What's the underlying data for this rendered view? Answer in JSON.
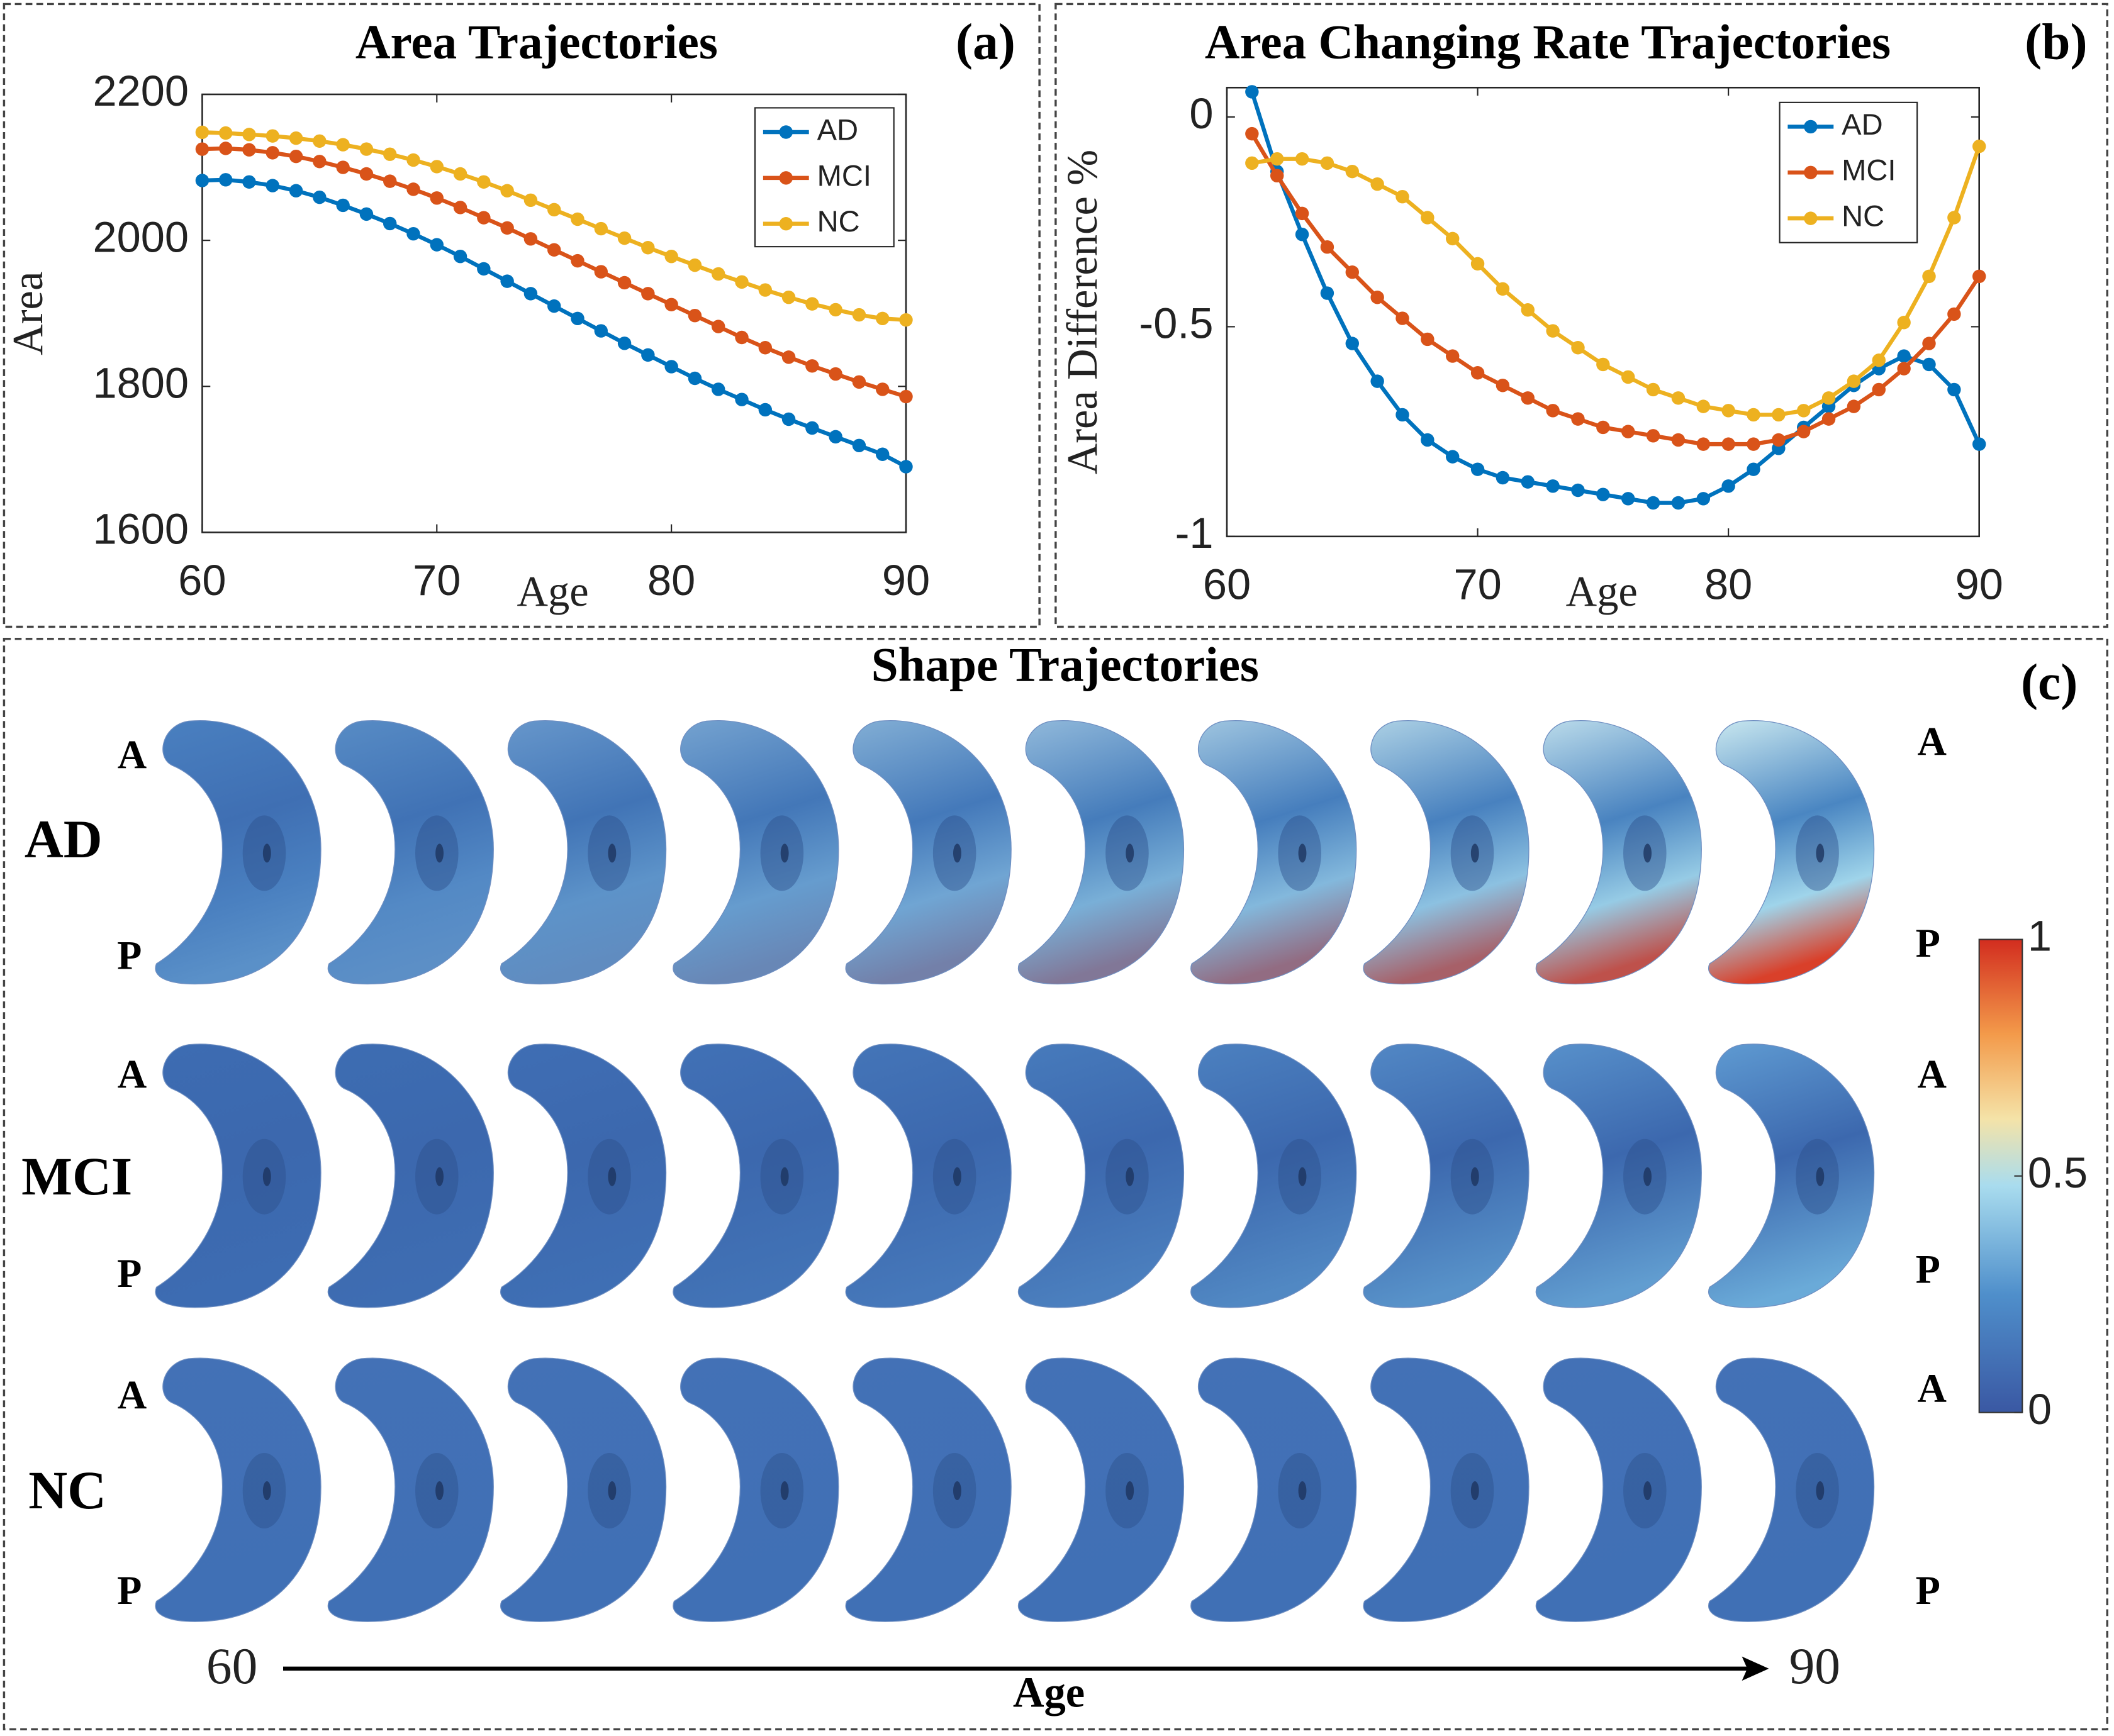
{
  "chart_data": [
    {
      "type": "line",
      "title": "Area Trajectories",
      "panel_label": "(a)",
      "x_label": "Age",
      "y_label": "Area",
      "x": [
        60,
        61,
        62,
        63,
        64,
        65,
        66,
        67,
        68,
        69,
        70,
        71,
        72,
        73,
        74,
        75,
        76,
        77,
        78,
        79,
        80,
        81,
        82,
        83,
        84,
        85,
        86,
        87,
        88,
        89,
        90
      ],
      "series": [
        {
          "name": "AD",
          "color": "#0072bd",
          "values": [
            2082,
            2083,
            2080,
            2075,
            2068,
            2059,
            2048,
            2036,
            2023,
            2009,
            1994,
            1978,
            1961,
            1944,
            1927,
            1910,
            1893,
            1876,
            1859,
            1843,
            1827,
            1811,
            1796,
            1782,
            1768,
            1755,
            1743,
            1731,
            1719,
            1707,
            1690
          ]
        },
        {
          "name": "MCI",
          "color": "#d95319",
          "values": [
            2125,
            2126,
            2124,
            2120,
            2115,
            2108,
            2100,
            2091,
            2081,
            2070,
            2058,
            2045,
            2031,
            2017,
            2002,
            1987,
            1972,
            1957,
            1942,
            1927,
            1912,
            1897,
            1882,
            1867,
            1853,
            1840,
            1828,
            1817,
            1806,
            1796,
            1786
          ]
        },
        {
          "name": "NC",
          "color": "#edb120",
          "values": [
            2148,
            2147,
            2145,
            2143,
            2140,
            2136,
            2131,
            2125,
            2118,
            2110,
            2101,
            2091,
            2080,
            2068,
            2055,
            2042,
            2029,
            2016,
            2003,
            1990,
            1978,
            1966,
            1954,
            1943,
            1932,
            1922,
            1913,
            1905,
            1898,
            1893,
            1891
          ]
        }
      ],
      "xlim": [
        60,
        90
      ],
      "ylim": [
        1600,
        2200
      ],
      "xticks": [
        60,
        70,
        80,
        90
      ],
      "yticks": [
        1600,
        1800,
        2000,
        2200
      ],
      "legend": "upper right"
    },
    {
      "type": "line",
      "title": "Area Changing Rate Trajectories",
      "panel_label": "(b)",
      "x_label": "Age",
      "y_label": "Area Difference %",
      "x": [
        61,
        62,
        63,
        64,
        65,
        66,
        67,
        68,
        69,
        70,
        71,
        72,
        73,
        74,
        75,
        76,
        77,
        78,
        79,
        80,
        81,
        82,
        83,
        84,
        85,
        86,
        87,
        88,
        89,
        90
      ],
      "series": [
        {
          "name": "AD",
          "color": "#0072bd",
          "values": [
            0.06,
            -0.13,
            -0.28,
            -0.42,
            -0.54,
            -0.63,
            -0.71,
            -0.77,
            -0.81,
            -0.84,
            -0.86,
            -0.87,
            -0.88,
            -0.89,
            -0.9,
            -0.91,
            -0.92,
            -0.92,
            -0.91,
            -0.88,
            -0.84,
            -0.79,
            -0.74,
            -0.69,
            -0.64,
            -0.6,
            -0.57,
            -0.59,
            -0.65,
            -0.78
          ]
        },
        {
          "name": "MCI",
          "color": "#d95319",
          "values": [
            -0.04,
            -0.14,
            -0.23,
            -0.31,
            -0.37,
            -0.43,
            -0.48,
            -0.53,
            -0.57,
            -0.61,
            -0.64,
            -0.67,
            -0.7,
            -0.72,
            -0.74,
            -0.75,
            -0.76,
            -0.77,
            -0.78,
            -0.78,
            -0.78,
            -0.77,
            -0.75,
            -0.72,
            -0.69,
            -0.65,
            -0.6,
            -0.54,
            -0.47,
            -0.38
          ]
        },
        {
          "name": "NC",
          "color": "#edb120",
          "values": [
            -0.11,
            -0.1,
            -0.1,
            -0.11,
            -0.13,
            -0.16,
            -0.19,
            -0.24,
            -0.29,
            -0.35,
            -0.41,
            -0.46,
            -0.51,
            -0.55,
            -0.59,
            -0.62,
            -0.65,
            -0.67,
            -0.69,
            -0.7,
            -0.71,
            -0.71,
            -0.7,
            -0.67,
            -0.63,
            -0.58,
            -0.49,
            -0.38,
            -0.24,
            -0.07
          ]
        }
      ],
      "xlim": [
        60,
        90
      ],
      "ylim": [
        -1,
        0.07
      ],
      "xticks": [
        60,
        70,
        80,
        90
      ],
      "yticks": [
        -1,
        -0.5,
        0
      ],
      "legend": "upper right"
    }
  ],
  "shape_panel": {
    "title": "Shape Trajectories",
    "panel_label": "(c)",
    "groups": [
      "AD",
      "MCI",
      "NC"
    ],
    "anterior": "A",
    "posterior": "P",
    "age_range": [
      60,
      90
    ],
    "age_label": "Age",
    "colorbar": {
      "lim": [
        0,
        1
      ],
      "ticks": [
        0,
        0.5,
        1
      ]
    }
  }
}
